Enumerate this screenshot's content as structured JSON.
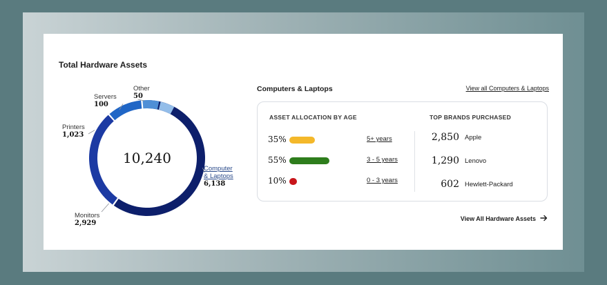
{
  "card": {
    "title": "Total Hardware Assets",
    "total": "10,240"
  },
  "chart_data": {
    "type": "pie",
    "categories": [
      "Computer & Laptops",
      "Monitors",
      "Printers",
      "Servers",
      "Other"
    ],
    "values": [
      6138,
      2929,
      1023,
      100,
      50
    ],
    "colors": [
      "#0d1f6b",
      "#1c3aa3",
      "#2066c6",
      "#4f8fd6",
      "#93bde9"
    ],
    "labels": [
      {
        "name": "Computer\n& Laptops",
        "value": "6,138"
      },
      {
        "name": "Monitors",
        "value": "2,929"
      },
      {
        "name": "Printers",
        "value": "1,023"
      },
      {
        "name": "Servers",
        "value": "100"
      },
      {
        "name": "Other",
        "value": "50"
      }
    ]
  },
  "computers": {
    "title": "Computers & Laptops",
    "view_all_label": "View all Computers & Laptops",
    "allocation_heading": "ASSET ALLOCATION BY AGE",
    "brands_heading": "TOP BRANDS PURCHASED",
    "ages": [
      {
        "pct": "35%",
        "fraction": 0.35,
        "color": "#f4b82a",
        "label": "5+ years"
      },
      {
        "pct": "55%",
        "fraction": 0.55,
        "color": "#2e7d1c",
        "label": "3 - 5 years"
      },
      {
        "pct": "10%",
        "fraction": 0.1,
        "color": "#c8161b",
        "label": "0 - 3 years"
      }
    ],
    "brands": [
      {
        "count": "2,850",
        "name": "Apple"
      },
      {
        "count": "1,290",
        "name": "Lenovo"
      },
      {
        "count": "602",
        "name": "Hewlett-Packard"
      }
    ]
  },
  "footer": {
    "view_all_hardware_label": "View All Hardware Assets",
    "arrow_icon": "arrow-right-icon"
  }
}
